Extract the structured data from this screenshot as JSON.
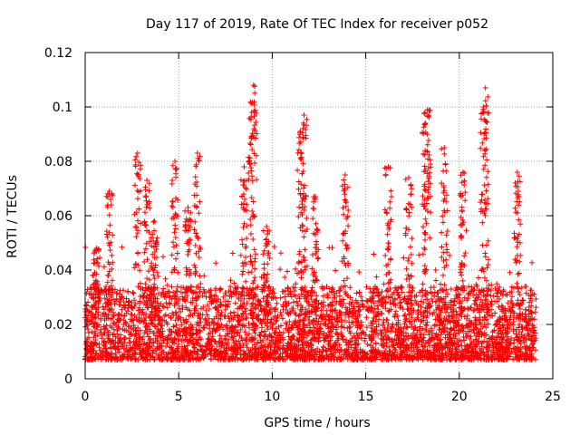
{
  "chart_data": {
    "type": "scatter",
    "title": "Day 117 of 2019, Rate Of TEC Index for receiver p052",
    "xlabel": "GPS time / hours",
    "ylabel": "ROTI / TECUs",
    "xlim": [
      0,
      25
    ],
    "ylim": [
      0,
      0.12
    ],
    "xticks": [
      0,
      5,
      10,
      15,
      20,
      25
    ],
    "xtick_labels": [
      "0",
      "5",
      "10",
      "15",
      "20",
      "25"
    ],
    "yticks": [
      0,
      0.02,
      0.04,
      0.06,
      0.08,
      0.1,
      0.12
    ],
    "ytick_labels": [
      "0",
      "0.02",
      "0.04",
      "0.06",
      "0.08",
      "0.1",
      "0.12"
    ],
    "grid": true,
    "marker": "+",
    "series": [
      {
        "name": "ROTI",
        "color": "#ff0000",
        "x_range": [
          0,
          24.1
        ],
        "baseline_range": [
          0.003,
          0.03
        ],
        "peaks": [
          {
            "x": 0.6,
            "y": 0.048
          },
          {
            "x": 1.3,
            "y": 0.069
          },
          {
            "x": 2.8,
            "y": 0.083
          },
          {
            "x": 3.3,
            "y": 0.073
          },
          {
            "x": 3.7,
            "y": 0.058
          },
          {
            "x": 4.8,
            "y": 0.08
          },
          {
            "x": 5.5,
            "y": 0.063
          },
          {
            "x": 6.0,
            "y": 0.083
          },
          {
            "x": 8.5,
            "y": 0.078
          },
          {
            "x": 8.9,
            "y": 0.098
          },
          {
            "x": 9.0,
            "y": 0.108
          },
          {
            "x": 9.7,
            "y": 0.056
          },
          {
            "x": 11.5,
            "y": 0.091
          },
          {
            "x": 11.7,
            "y": 0.097
          },
          {
            "x": 12.3,
            "y": 0.067
          },
          {
            "x": 13.9,
            "y": 0.075
          },
          {
            "x": 16.2,
            "y": 0.078
          },
          {
            "x": 17.3,
            "y": 0.074
          },
          {
            "x": 18.2,
            "y": 0.094
          },
          {
            "x": 18.3,
            "y": 0.099
          },
          {
            "x": 19.2,
            "y": 0.085
          },
          {
            "x": 20.2,
            "y": 0.076
          },
          {
            "x": 21.3,
            "y": 0.1
          },
          {
            "x": 21.4,
            "y": 0.107
          },
          {
            "x": 23.1,
            "y": 0.076
          }
        ]
      }
    ]
  }
}
